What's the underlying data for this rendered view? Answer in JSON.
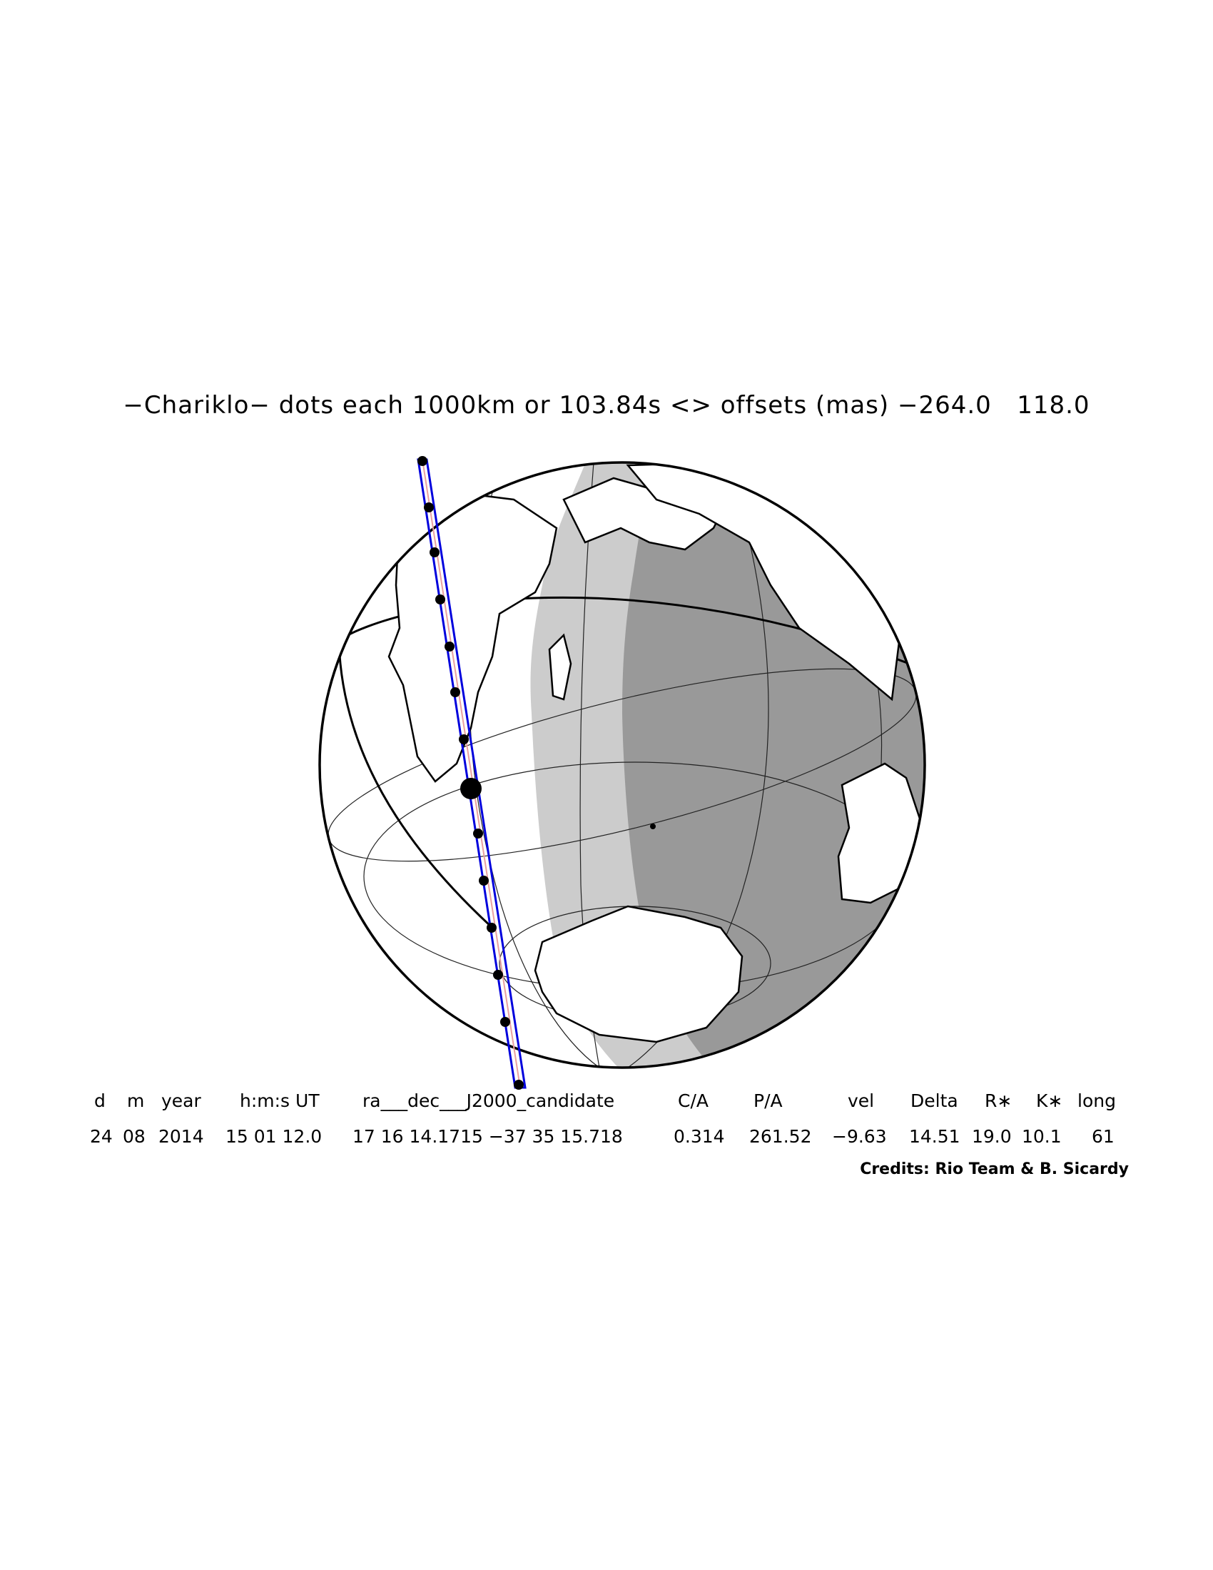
{
  "title": "−Chariklo− dots each 1000km or 103.84s <> offsets (mas) −264.0   118.0",
  "table": {
    "headers": [
      "d",
      "m",
      "year",
      "h:m:s UT",
      "ra___dec___J2000_candidate",
      "C/A",
      "P/A",
      "vel",
      "Delta",
      "R∗",
      "K∗",
      "long"
    ],
    "values": [
      "24",
      "08",
      "2014",
      "15 01 12.0",
      "17 16 14.1715 −37 35 15.718",
      "0.314",
      "261.52",
      "−9.63",
      "14.51",
      "19.0",
      "10.1",
      "61"
    ]
  },
  "credits": "Credits: Rio Team & B. Sicardy",
  "colors": {
    "track": "#0000dd",
    "centerline": "#e8a0a0",
    "night": "#999999",
    "twilight": "#cccccc",
    "day": "#ffffff"
  }
}
